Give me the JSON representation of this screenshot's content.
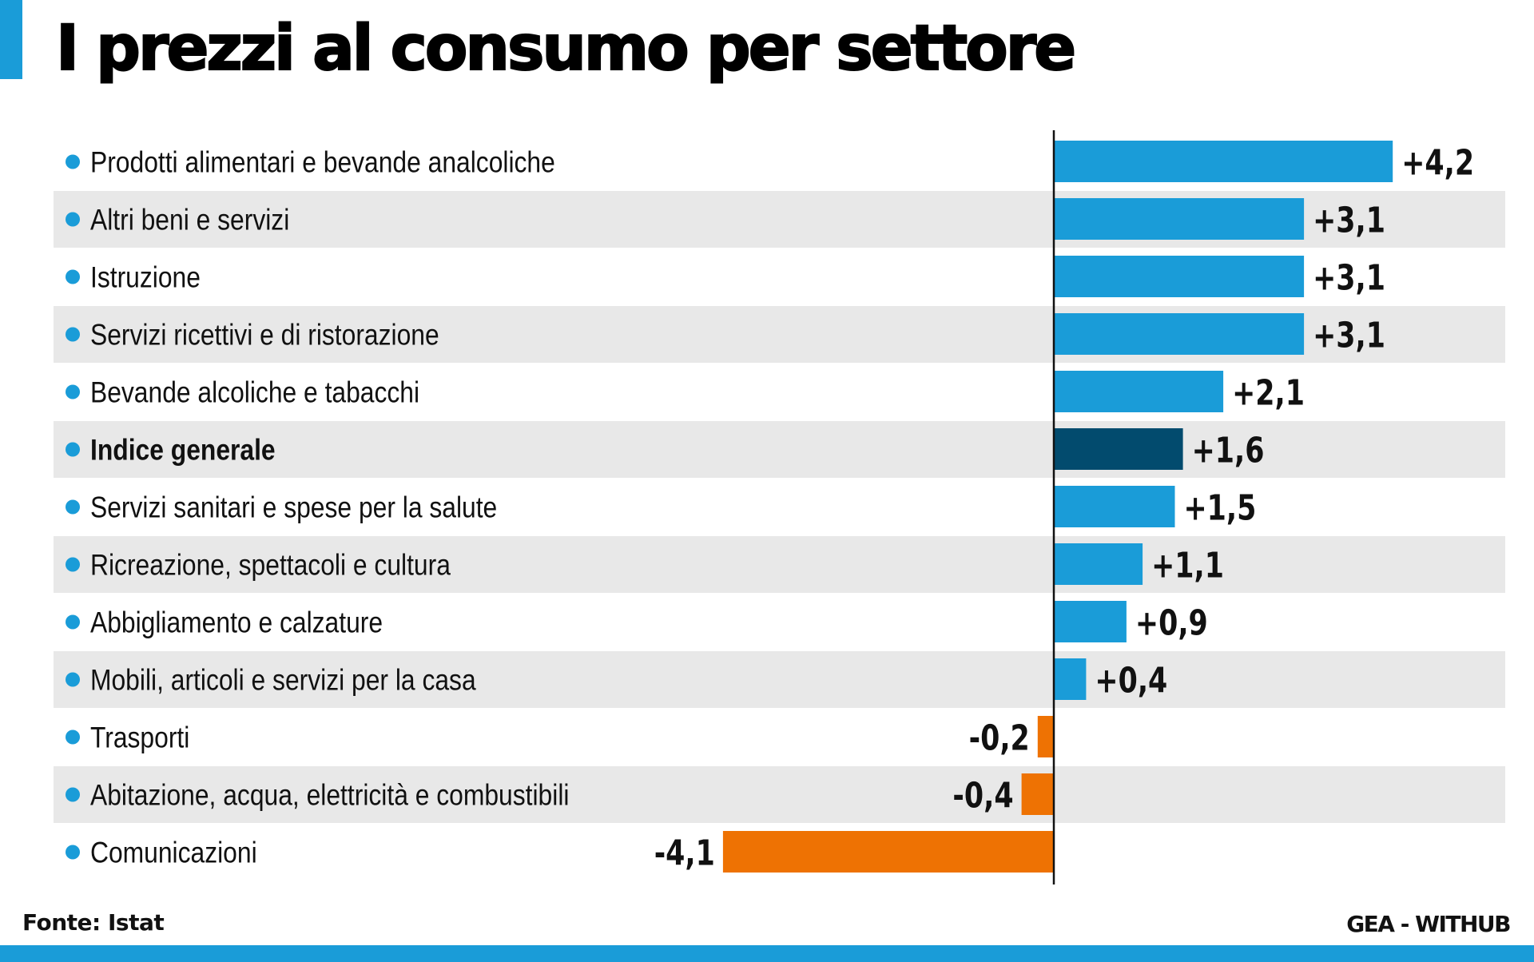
{
  "title": "I prezzi al consumo per settore",
  "footer": {
    "source": "Fonte: Istat",
    "credit": "GEA - WITHUB"
  },
  "colors": {
    "accent": "#1A9CD8",
    "positive": "#1A9CD8",
    "highlight": "#024B6E",
    "negative": "#EE7203",
    "stripe": "#E8E8E8",
    "bullet": "#1A9CD8"
  },
  "chart_data": {
    "type": "bar",
    "orientation": "horizontal",
    "title": "I prezzi al consumo per settore",
    "xlabel": "",
    "ylabel": "",
    "xlim": [
      -4.1,
      4.2
    ],
    "grid": false,
    "legend": "none",
    "categories": [
      "Prodotti alimentari e bevande analcoliche",
      "Altri beni e servizi",
      "Istruzione",
      "Servizi ricettivi e di ristorazione",
      "Bevande alcoliche e tabacchi",
      "Indice generale",
      "Servizi sanitari e spese per la salute",
      "Ricreazione, spettacoli e cultura",
      "Abbigliamento e calzature",
      "Mobili, articoli e servizi per la casa",
      "Trasporti",
      "Abitazione, acqua, elettricità e combustibili",
      "Comunicazioni"
    ],
    "values": [
      4.2,
      3.1,
      3.1,
      3.1,
      2.1,
      1.6,
      1.5,
      1.1,
      0.9,
      0.4,
      -0.2,
      -0.4,
      -4.1
    ],
    "value_labels": [
      "+4,2",
      "+3,1",
      "+3,1",
      "+3,1",
      "+2,1",
      "+1,6",
      "+1,5",
      "+1,1",
      "+0,9",
      "+0,4",
      "-0,2",
      "-0,4",
      "-4,1"
    ],
    "highlighted_category": "Indice generale"
  }
}
